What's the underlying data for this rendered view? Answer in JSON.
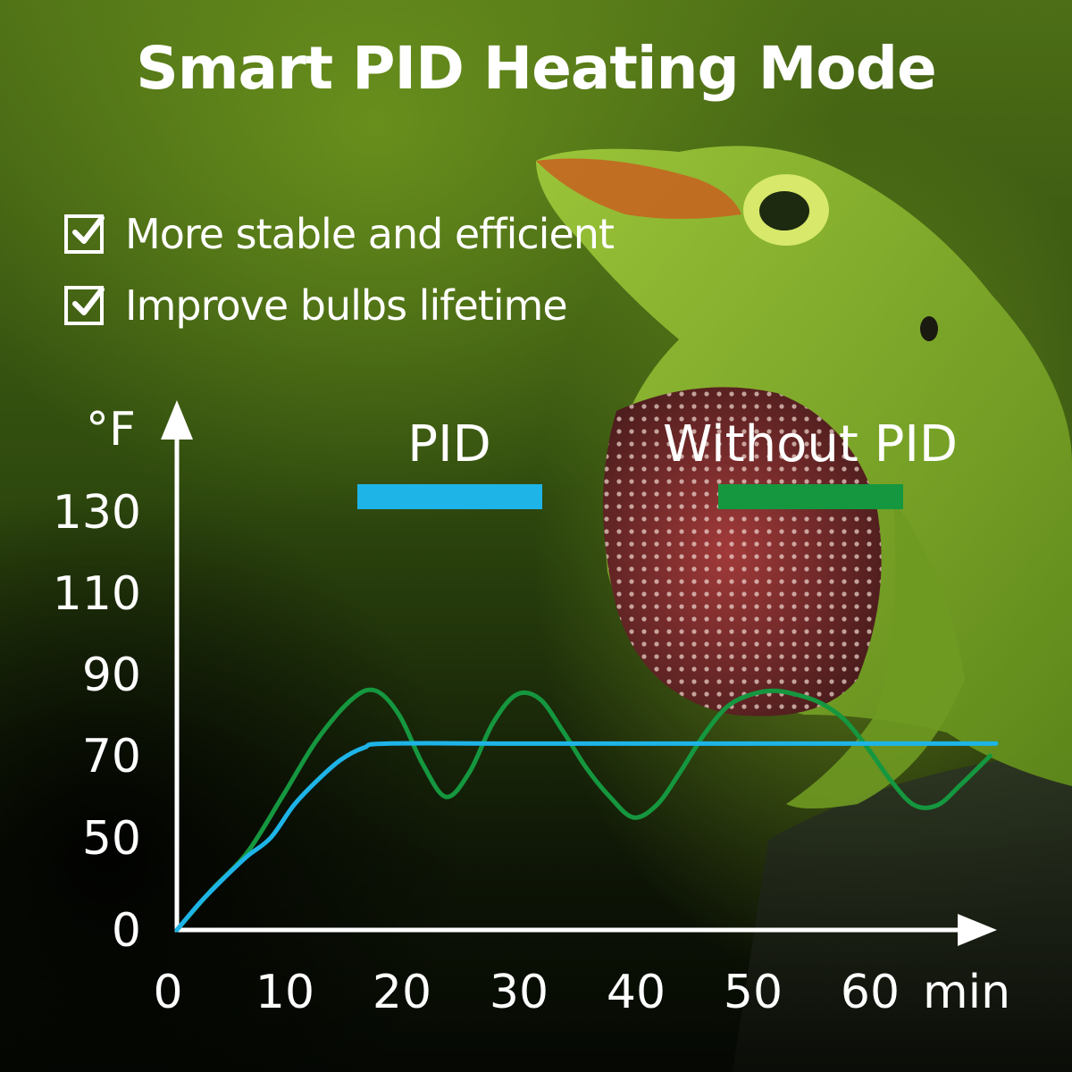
{
  "title": "Smart PID Heating Mode",
  "features": [
    {
      "label": "More stable and efficient",
      "icon": "checkbox-checked-icon"
    },
    {
      "label": "Improve bulbs lifetime",
      "icon": "checkbox-checked-icon"
    }
  ],
  "colors": {
    "pid": "#1eb4e8",
    "without_pid": "#15973f",
    "text": "#ffffff"
  },
  "chart_data": {
    "type": "line",
    "xlabel": "min",
    "ylabel": "°F",
    "x_ticks": [
      0,
      10,
      20,
      30,
      40,
      50,
      60
    ],
    "y_ticks": [
      0,
      50,
      70,
      90,
      110,
      130
    ],
    "y_tick_positions_note": "",
    "xlim": [
      0,
      70
    ],
    "legend_placement": "top",
    "grid": false,
    "series": [
      {
        "name": "PID",
        "color": "#1eb4e8",
        "x": [
          0,
          2,
          4,
          6,
          8,
          10,
          12,
          14,
          16,
          18,
          30,
          40,
          50,
          60,
          70
        ],
        "y": [
          0,
          15,
          28,
          40,
          50,
          58,
          64,
          69,
          72,
          73,
          73,
          73,
          73,
          73,
          73
        ]
      },
      {
        "name": "Without PID",
        "color": "#15973f",
        "x": [
          0,
          3,
          6,
          9,
          12,
          15,
          17,
          19,
          21,
          23,
          25,
          27,
          29,
          31,
          33,
          35,
          37,
          39,
          41,
          43,
          45,
          47,
          49,
          51,
          53,
          55,
          57,
          59,
          61,
          63,
          65,
          67,
          69.5
        ],
        "y": [
          0,
          22,
          42,
          60,
          74,
          84,
          86,
          80,
          68,
          60,
          66,
          78,
          85,
          84,
          76,
          67,
          60,
          55,
          58,
          66,
          75,
          82,
          85,
          86,
          85,
          83,
          79,
          72,
          64,
          58,
          58,
          63,
          70
        ]
      }
    ]
  }
}
